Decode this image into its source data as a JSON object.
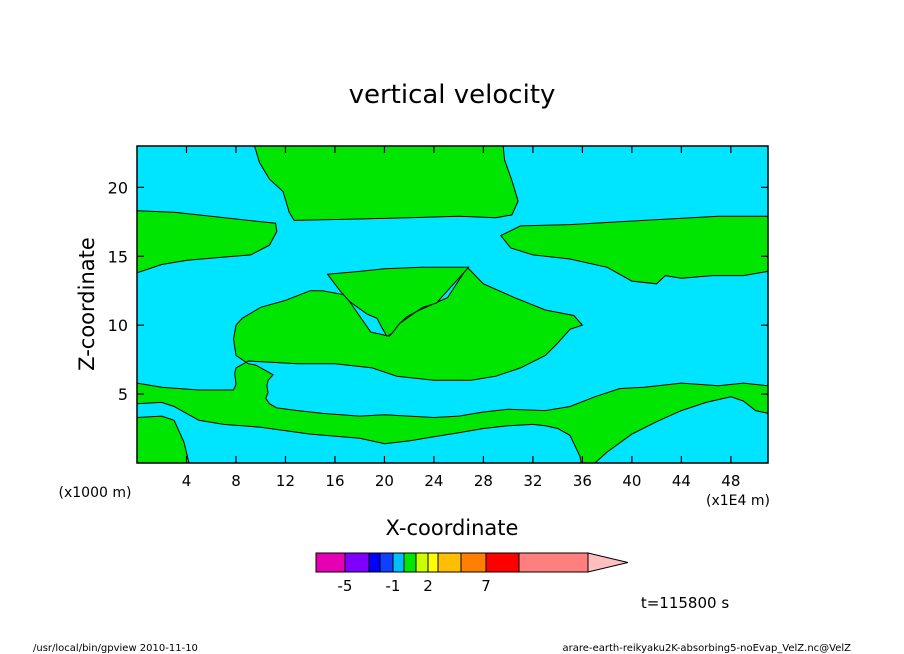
{
  "chart_data": {
    "type": "heatmap",
    "title": "vertical velocity",
    "xlabel": "X-coordinate",
    "ylabel": "Z-coordinate",
    "x_unit_left": "(x1000 m)",
    "x_unit_right": "(x1E4 m)",
    "xlim": [
      0,
      51
    ],
    "ylim": [
      0,
      23
    ],
    "x_ticks": [
      "4",
      "8",
      "12",
      "16",
      "20",
      "24",
      "28",
      "32",
      "36",
      "40",
      "44",
      "48"
    ],
    "y_ticks": [
      "5",
      "10",
      "15",
      "20"
    ],
    "background_color": "#00e5ff",
    "fill_color": "#00e600",
    "regions": [
      {
        "name": "upper-center",
        "polygon": [
          [
            9.5,
            23
          ],
          [
            9.9,
            21.8
          ],
          [
            10.7,
            20.6
          ],
          [
            11.8,
            19.7
          ],
          [
            12.3,
            18.2
          ],
          [
            12.7,
            17.6
          ],
          [
            18,
            17.7
          ],
          [
            22,
            17.8
          ],
          [
            26,
            17.9
          ],
          [
            29,
            17.8
          ],
          [
            30.3,
            18
          ],
          [
            30.8,
            19
          ],
          [
            30.3,
            20.5
          ],
          [
            29.7,
            22
          ],
          [
            29.6,
            23
          ]
        ]
      },
      {
        "name": "upper-left",
        "polygon": [
          [
            0,
            18.3
          ],
          [
            3,
            18.2
          ],
          [
            6,
            17.9
          ],
          [
            9,
            17.6
          ],
          [
            11.2,
            17.4
          ],
          [
            11.3,
            16.8
          ],
          [
            10.7,
            15.8
          ],
          [
            9.2,
            15.1
          ],
          [
            6.5,
            14.9
          ],
          [
            4,
            14.7
          ],
          [
            2,
            14.4
          ],
          [
            0,
            13.8
          ]
        ]
      },
      {
        "name": "upper-right",
        "polygon": [
          [
            51,
            17.9
          ],
          [
            47,
            17.9
          ],
          [
            43,
            17.7
          ],
          [
            39,
            17.5
          ],
          [
            35,
            17.3
          ],
          [
            31,
            17.2
          ],
          [
            29.4,
            16.5
          ],
          [
            30.2,
            15.6
          ],
          [
            32,
            15.1
          ],
          [
            35,
            14.8
          ],
          [
            38,
            14.2
          ],
          [
            40,
            13.2
          ],
          [
            42,
            13
          ],
          [
            42.7,
            13.6
          ],
          [
            44,
            13.4
          ],
          [
            46.5,
            13.6
          ],
          [
            49,
            13.6
          ],
          [
            51,
            13.9
          ]
        ]
      },
      {
        "name": "middle",
        "polygon": [
          [
            15,
            12.5
          ],
          [
            16.8,
            12.2
          ],
          [
            18.9,
            9.5
          ],
          [
            20.4,
            9.2
          ],
          [
            21.2,
            10.1
          ],
          [
            22.6,
            11
          ],
          [
            25.1,
            12
          ],
          [
            26.7,
            14.2
          ],
          [
            28,
            13
          ],
          [
            30.5,
            12
          ],
          [
            33,
            11.1
          ],
          [
            35.3,
            10.7
          ],
          [
            36,
            10
          ],
          [
            35,
            9.7
          ],
          [
            34,
            8.7
          ],
          [
            33,
            7.8
          ],
          [
            31,
            6.9
          ],
          [
            29,
            6.3
          ],
          [
            27,
            6
          ],
          [
            24,
            6
          ],
          [
            21,
            6.3
          ],
          [
            19,
            6.9
          ],
          [
            16,
            7.2
          ],
          [
            13,
            7.2
          ],
          [
            11,
            7.3
          ],
          [
            9,
            7.4
          ],
          [
            8,
            6.9
          ],
          [
            7.9,
            6.5
          ],
          [
            8,
            5.7
          ],
          [
            7.8,
            5.3
          ],
          [
            5,
            5.3
          ],
          [
            2,
            5.5
          ],
          [
            0,
            5.8
          ],
          [
            0,
            4.3
          ],
          [
            2,
            4.4
          ],
          [
            3,
            4.1
          ],
          [
            4,
            3.6
          ],
          [
            5,
            3.1
          ],
          [
            7,
            2.8
          ],
          [
            10,
            2.6
          ],
          [
            14,
            2.1
          ],
          [
            18,
            1.8
          ],
          [
            20,
            1.4
          ],
          [
            22,
            1.6
          ],
          [
            24,
            1.9
          ],
          [
            26,
            2.2
          ],
          [
            28,
            2.5
          ],
          [
            30,
            2.7
          ],
          [
            32,
            2.8
          ],
          [
            33,
            2.7
          ],
          [
            34,
            2.5
          ],
          [
            35,
            2
          ],
          [
            35.8,
            0.5
          ],
          [
            35.9,
            0
          ],
          [
            37,
            0
          ],
          [
            38,
            0.8
          ],
          [
            40,
            2.1
          ],
          [
            42,
            3
          ],
          [
            44,
            3.8
          ],
          [
            46,
            4.4
          ],
          [
            48,
            4.8
          ],
          [
            49,
            4.5
          ],
          [
            50,
            3.8
          ],
          [
            51,
            3.6
          ],
          [
            51,
            5.6
          ],
          [
            49,
            5.8
          ],
          [
            47,
            5.6
          ],
          [
            44,
            5.8
          ],
          [
            41,
            5.5
          ],
          [
            39,
            5.4
          ],
          [
            37,
            4.8
          ],
          [
            35,
            4.1
          ],
          [
            33,
            3.8
          ],
          [
            30,
            3.9
          ],
          [
            28,
            3.7
          ],
          [
            26,
            3.4
          ],
          [
            24,
            3.3
          ],
          [
            22,
            3.4
          ],
          [
            20,
            3.5
          ],
          [
            18,
            3.4
          ],
          [
            15,
            3.6
          ],
          [
            13,
            3.8
          ],
          [
            11.3,
            4
          ],
          [
            10.7,
            4.3
          ],
          [
            10.4,
            4.7
          ],
          [
            10.6,
            5.1
          ],
          [
            10.5,
            5.6
          ],
          [
            10.6,
            6
          ],
          [
            11,
            6.4
          ],
          [
            9.6,
            7.1
          ],
          [
            9,
            7.2
          ],
          [
            8,
            7.8
          ],
          [
            7.8,
            9
          ],
          [
            8,
            10
          ],
          [
            8.5,
            10.5
          ],
          [
            10,
            11.3
          ],
          [
            12,
            11.8
          ],
          [
            14,
            12.5
          ],
          [
            15,
            12.5
          ]
        ]
      },
      {
        "name": "middle-upper-cap",
        "polygon": [
          [
            15.4,
            13.7
          ],
          [
            18,
            13.9
          ],
          [
            20,
            14.1
          ],
          [
            23,
            14.2
          ],
          [
            26.8,
            14.2
          ],
          [
            25.5,
            12.9
          ],
          [
            24.2,
            11.6
          ],
          [
            23.1,
            11.3
          ],
          [
            22.6,
            11
          ],
          [
            21.8,
            10.6
          ],
          [
            21.2,
            10.1
          ],
          [
            20.6,
            9.4
          ],
          [
            20.2,
            9.2
          ],
          [
            19.8,
            9.8
          ],
          [
            19.4,
            10.5
          ],
          [
            18.6,
            10.8
          ],
          [
            17.2,
            11.7
          ],
          [
            16.4,
            12.5
          ],
          [
            15.4,
            13.7
          ]
        ]
      },
      {
        "name": "lower-left",
        "polygon": [
          [
            0,
            3.3
          ],
          [
            2,
            3.4
          ],
          [
            3,
            3.1
          ],
          [
            3.8,
            1.5
          ],
          [
            4.2,
            0
          ],
          [
            0,
            0
          ]
        ]
      }
    ],
    "colorbar": {
      "colors": [
        "#e600b4",
        "#7f00ff",
        "#0000ff",
        "#0f3fff",
        "#00bfff",
        "#00e600",
        "#ccff00",
        "#ffff00",
        "#ffbf00",
        "#ff7f00",
        "#ff0000",
        "#ff7f7f"
      ],
      "arrow_color": "#ffbfbf",
      "labels": [
        "-5",
        "-1",
        "2",
        "7"
      ]
    },
    "time_label": "t=115800 s"
  },
  "footer": {
    "left": "/usr/local/bin/gpview  2010-11-10",
    "right": "arare-earth-reikyaku2K-absorbing5-noEvap_VelZ.nc@VelZ"
  }
}
